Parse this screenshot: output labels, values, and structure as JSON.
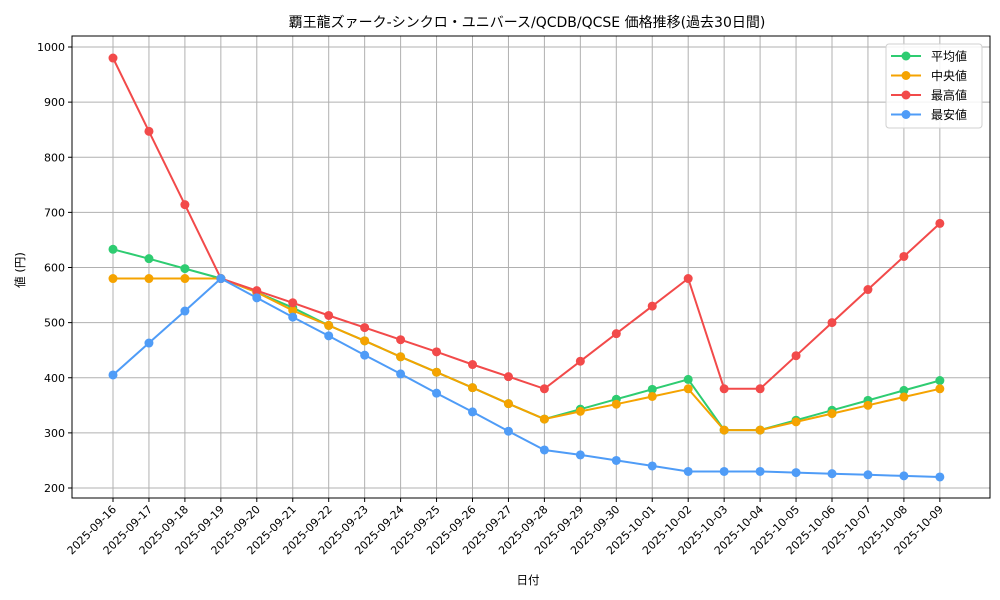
{
  "chart_data": {
    "type": "line",
    "title": "覇王龍ズァーク-シンクロ・ユニバース/QCDB/QCSE 価格推移(過去30日間)",
    "xlabel": "日付",
    "ylabel": "値 (円)",
    "ylim": [
      183,
      1035
    ],
    "yticks": [
      200,
      300,
      400,
      500,
      600,
      700,
      800,
      900,
      1000
    ],
    "grid": true,
    "legend_position": "upper right",
    "categories": [
      "2025-09-16",
      "2025-09-17",
      "2025-09-18",
      "2025-09-19",
      "2025-09-20",
      "2025-09-21",
      "2025-09-22",
      "2025-09-23",
      "2025-09-24",
      "2025-09-25",
      "2025-09-26",
      "2025-09-27",
      "2025-09-28",
      "2025-09-29",
      "2025-09-30",
      "2025-10-01",
      "2025-10-02",
      "2025-10-03",
      "2025-10-04",
      "2025-10-05",
      "2025-10-06",
      "2025-10-07",
      "2025-10-08",
      "2025-10-09"
    ],
    "series": [
      {
        "name": "平均値",
        "color": "#2ecc71",
        "values": [
          633,
          616,
          598,
          580,
          555,
          527,
          495,
          467,
          438,
          410,
          382,
          353,
          325,
          343,
          361,
          379,
          397,
          305,
          305,
          323,
          341,
          359,
          377,
          395
        ]
      },
      {
        "name": "中央値",
        "color": "#f5a300",
        "values": [
          580,
          580,
          580,
          580,
          555,
          522,
          495,
          467,
          438,
          410,
          382,
          353,
          325,
          339,
          352,
          366,
          380,
          305,
          305,
          320,
          335,
          350,
          365,
          380
        ]
      },
      {
        "name": "最高値",
        "color": "#f24a4a",
        "values": [
          980,
          847,
          714,
          580,
          558,
          536,
          513,
          491,
          469,
          447,
          424,
          402,
          380,
          430,
          480,
          530,
          580,
          380,
          380,
          440,
          500,
          560,
          620,
          680
        ]
      },
      {
        "name": "最安値",
        "color": "#4f9cf7",
        "values": [
          405,
          463,
          521,
          580,
          545,
          510,
          476,
          441,
          407,
          372,
          338,
          303,
          269,
          260,
          250,
          240,
          230,
          230,
          230,
          228,
          226,
          224,
          222,
          220
        ]
      }
    ]
  }
}
